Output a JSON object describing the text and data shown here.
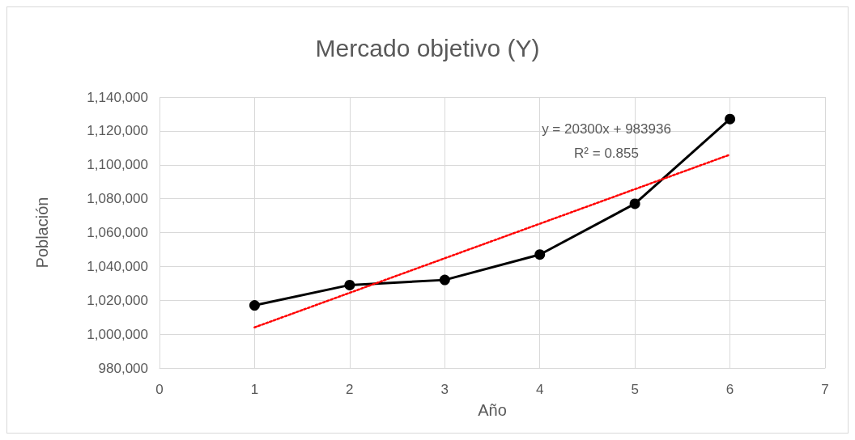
{
  "chart_data": {
    "type": "line",
    "title": "Mercado objetivo (Y)",
    "xlabel": "Año",
    "ylabel": "Población",
    "xlim": [
      0,
      7
    ],
    "xticks": [
      0,
      1,
      2,
      3,
      4,
      5,
      6,
      7
    ],
    "ylim": [
      980000,
      1140000
    ],
    "yticks": [
      {
        "value": 980000,
        "label": "980,000"
      },
      {
        "value": 1000000,
        "label": "1,000,000"
      },
      {
        "value": 1020000,
        "label": "1,020,000"
      },
      {
        "value": 1040000,
        "label": "1,040,000"
      },
      {
        "value": 1060000,
        "label": "1,060,000"
      },
      {
        "value": 1080000,
        "label": "1,080,000"
      },
      {
        "value": 1100000,
        "label": "1,100,000"
      },
      {
        "value": 1120000,
        "label": "1,120,000"
      },
      {
        "value": 1140000,
        "label": "1,140,000"
      }
    ],
    "grid": true,
    "series": [
      {
        "type": "line",
        "color": "#000000",
        "marker": "circle",
        "line_style": "solid",
        "x": [
          1,
          2,
          3,
          4,
          5,
          6
        ],
        "values": [
          1017000,
          1029000,
          1032000,
          1047000,
          1077000,
          1127000
        ]
      },
      {
        "type": "line",
        "color": "#ff0000",
        "marker": "none",
        "line_style": "dotted",
        "x": [
          1,
          6
        ],
        "values": [
          1004000,
          1106000
        ]
      }
    ],
    "annotations": [
      "y = 20300x + 983936",
      "R² = 0.855"
    ]
  }
}
